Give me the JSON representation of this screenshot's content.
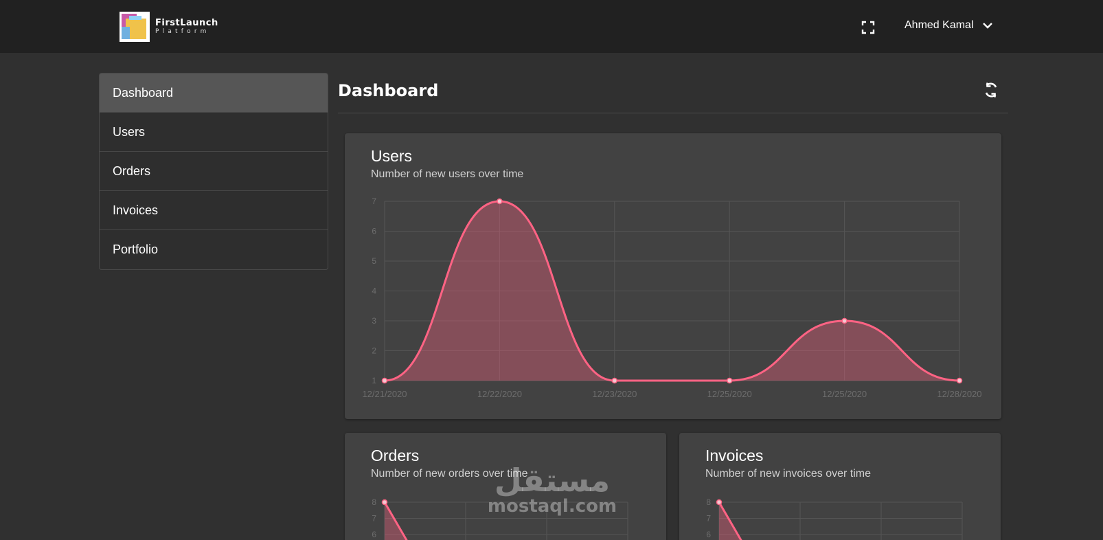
{
  "brand": {
    "line1": "FirstLaunch",
    "line2": "Platform"
  },
  "header": {
    "user_name": "Ahmed Kamal",
    "fullscreen_icon": "fullscreen-icon",
    "dropdown_icon": "chevron-down-icon"
  },
  "sidebar": {
    "items": [
      {
        "label": "Dashboard",
        "active": true
      },
      {
        "label": "Users",
        "active": false
      },
      {
        "label": "Orders",
        "active": false
      },
      {
        "label": "Invoices",
        "active": false
      },
      {
        "label": "Portfolio",
        "active": false
      }
    ]
  },
  "page": {
    "title": "Dashboard",
    "refresh_icon": "refresh-icon"
  },
  "colors": {
    "accent": "#ff6384",
    "fill": "rgba(255,99,132,0.35)"
  },
  "cards": {
    "users": {
      "title": "Users",
      "subtitle": "Number of new users over time"
    },
    "orders": {
      "title": "Orders",
      "subtitle": "Number of new orders over time"
    },
    "invoices": {
      "title": "Invoices",
      "subtitle": "Number of new invoices over time"
    }
  },
  "chart_data": [
    {
      "type": "area",
      "title": "Users",
      "subtitle": "Number of new users over time",
      "categories": [
        "12/21/2020",
        "12/22/2020",
        "12/23/2020",
        "12/25/2020",
        "12/25/2020",
        "12/28/2020"
      ],
      "values": [
        1,
        7,
        1,
        1,
        3,
        1
      ],
      "yticks": [
        1,
        2,
        3,
        4,
        5,
        6,
        7
      ],
      "ylim": [
        1,
        7
      ],
      "grid": true,
      "legend": "none"
    },
    {
      "type": "area",
      "title": "Orders",
      "subtitle": "Number of new orders over time",
      "yticks": [
        6,
        7,
        8
      ],
      "values_visible": [
        8
      ],
      "grid": true,
      "legend": "none"
    },
    {
      "type": "area",
      "title": "Invoices",
      "subtitle": "Number of new invoices over time",
      "yticks": [
        6,
        7,
        8
      ],
      "values_visible": [
        8
      ],
      "grid": true,
      "legend": "none"
    }
  ],
  "watermark": {
    "arabic": "مستقل",
    "latin": "mostaql.com"
  }
}
